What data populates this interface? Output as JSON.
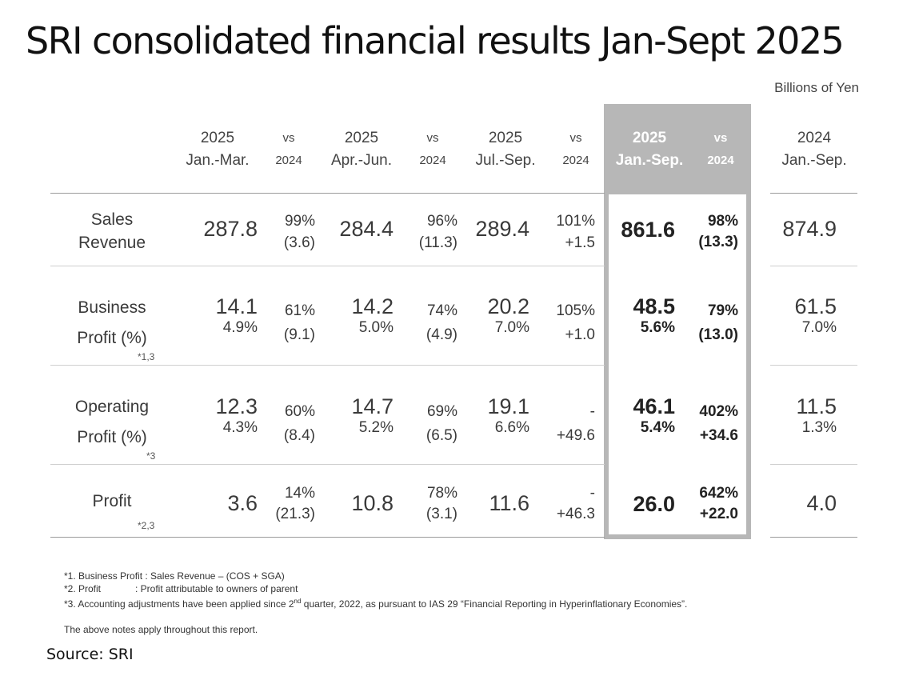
{
  "title": "SRI consolidated financial results Jan-Sept 2025",
  "units": "Billions of Yen",
  "chart_data": {
    "type": "table",
    "columns": [
      {
        "line1": "2025",
        "line2": "Jan.-Mar."
      },
      {
        "line1": "vs",
        "line2": "2024"
      },
      {
        "line1": "2025",
        "line2": "Apr.-Jun."
      },
      {
        "line1": "vs",
        "line2": "2024"
      },
      {
        "line1": "2025",
        "line2": "Jul.-Sep."
      },
      {
        "line1": "vs",
        "line2": "2024"
      },
      {
        "line1": "2025",
        "line2": "Jan.-Sep."
      },
      {
        "line1": "vs",
        "line2": "2024"
      },
      {
        "line1": "2024",
        "line2": "Jan.-Sep."
      }
    ],
    "rows": [
      {
        "label1": "Sales",
        "label2": "Revenue",
        "note": "",
        "q1": {
          "value": "287.8",
          "pct": ""
        },
        "q1_vs": {
          "ratio": "99%",
          "diff": "(3.6)"
        },
        "q2": {
          "value": "284.4",
          "pct": ""
        },
        "q2_vs": {
          "ratio": "96%",
          "diff": "(11.3)"
        },
        "q3": {
          "value": "289.4",
          "pct": ""
        },
        "q3_vs": {
          "ratio": "101%",
          "diff": "+1.5"
        },
        "ytd": {
          "value": "861.6",
          "pct": ""
        },
        "ytd_vs": {
          "ratio": "98%",
          "diff": "(13.3)"
        },
        "prev": {
          "value": "874.9",
          "pct": ""
        }
      },
      {
        "label1": "Business",
        "label2": "Profit (%)",
        "note": "*1,3",
        "q1": {
          "value": "14.1",
          "pct": "4.9%"
        },
        "q1_vs": {
          "ratio": "61%",
          "diff": "(9.1)"
        },
        "q2": {
          "value": "14.2",
          "pct": "5.0%"
        },
        "q2_vs": {
          "ratio": "74%",
          "diff": "(4.9)"
        },
        "q3": {
          "value": "20.2",
          "pct": "7.0%"
        },
        "q3_vs": {
          "ratio": "105%",
          "diff": "+1.0"
        },
        "ytd": {
          "value": "48.5",
          "pct": "5.6%"
        },
        "ytd_vs": {
          "ratio": "79%",
          "diff": "(13.0)"
        },
        "prev": {
          "value": "61.5",
          "pct": "7.0%"
        }
      },
      {
        "label1": "Operating",
        "label2": "Profit (%)",
        "note": "*3",
        "q1": {
          "value": "12.3",
          "pct": "4.3%"
        },
        "q1_vs": {
          "ratio": "60%",
          "diff": "(8.4)"
        },
        "q2": {
          "value": "14.7",
          "pct": "5.2%"
        },
        "q2_vs": {
          "ratio": "69%",
          "diff": "(6.5)"
        },
        "q3": {
          "value": "19.1",
          "pct": "6.6%"
        },
        "q3_vs": {
          "ratio": "-",
          "diff": "+49.6"
        },
        "ytd": {
          "value": "46.1",
          "pct": "5.4%"
        },
        "ytd_vs": {
          "ratio": "402%",
          "diff": "+34.6"
        },
        "prev": {
          "value": "11.5",
          "pct": "1.3%"
        }
      },
      {
        "label1": "Profit",
        "label2": "",
        "note": "*2,3",
        "q1": {
          "value": "3.6",
          "pct": ""
        },
        "q1_vs": {
          "ratio": "14%",
          "diff": "(21.3)"
        },
        "q2": {
          "value": "10.8",
          "pct": ""
        },
        "q2_vs": {
          "ratio": "78%",
          "diff": "(3.1)"
        },
        "q3": {
          "value": "11.6",
          "pct": ""
        },
        "q3_vs": {
          "ratio": "-",
          "diff": "+46.3"
        },
        "ytd": {
          "value": "26.0",
          "pct": ""
        },
        "ytd_vs": {
          "ratio": "642%",
          "diff": "+22.0"
        },
        "prev": {
          "value": "4.0",
          "pct": ""
        }
      }
    ]
  },
  "notes": {
    "n1": "*1. Business Profit : Sales Revenue – (COS + SGA)",
    "n2_a": "*2. Profit",
    "n2_b": ": Profit attributable to owners of parent",
    "n3_a": "*3. Accounting adjustments have been applied since 2",
    "n3_sup": "nd",
    "n3_b": " quarter, 2022, as pursuant to IAS 29 “Financial Reporting in Hyperinflationary Economies”.",
    "n4": "The above notes apply throughout this report."
  },
  "source": "Source: SRI",
  "colors": {
    "highlight": "#b7b7b7",
    "text": "#3a3a3a"
  }
}
